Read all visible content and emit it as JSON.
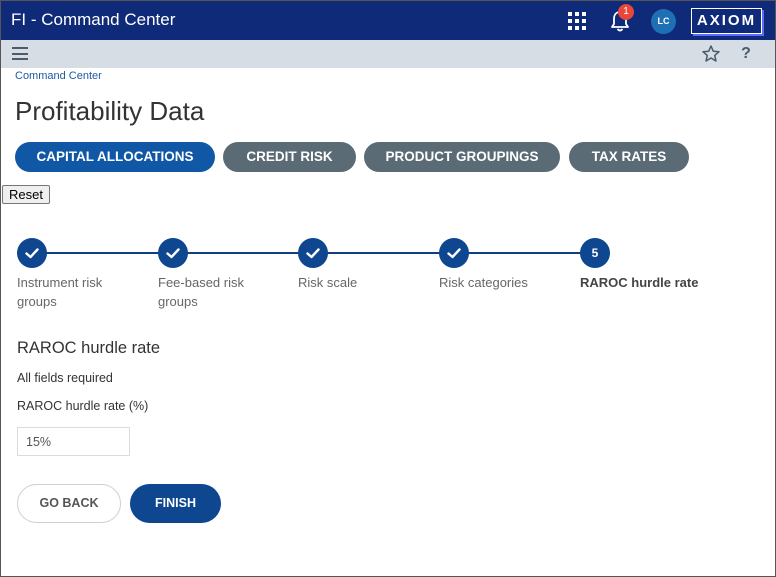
{
  "header": {
    "app_title": "FI - Command Center",
    "notification_count": "1",
    "user_initials": "LC",
    "logo_text": "AXIOM",
    "icons": [
      "apps-grid-icon",
      "bell-icon"
    ]
  },
  "subbar": {
    "icons": [
      "hamburger-menu-icon",
      "star-icon",
      "help-icon"
    ],
    "help_label": "?"
  },
  "breadcrumb": "Command Center",
  "page_title": "Profitability Data",
  "tabs": [
    {
      "label": "CAPITAL ALLOCATIONS",
      "active": true
    },
    {
      "label": "CREDIT RISK",
      "active": false
    },
    {
      "label": "PRODUCT GROUPINGS",
      "active": false
    },
    {
      "label": "TAX RATES",
      "active": false
    }
  ],
  "reset_label": "Reset",
  "steps": [
    {
      "label": "Instrument risk groups",
      "status": "complete"
    },
    {
      "label": "Fee-based risk groups",
      "status": "complete"
    },
    {
      "label": "Risk scale",
      "status": "complete"
    },
    {
      "label": "Risk categories",
      "status": "complete"
    },
    {
      "label": "RAROC hurdle rate",
      "status": "current",
      "number": "5"
    }
  ],
  "form": {
    "section_title": "RAROC hurdle rate",
    "required_note": "All fields required",
    "field_label": "RAROC hurdle rate (%)",
    "field_value": "15%"
  },
  "buttons": {
    "go_back": "GO BACK",
    "finish": "FINISH"
  },
  "colors": {
    "header_bg": "#0e2a78",
    "active_tab": "#1058a6",
    "inactive_tab": "#5b6b76",
    "step": "#0e4790",
    "badge": "#e8473b"
  }
}
